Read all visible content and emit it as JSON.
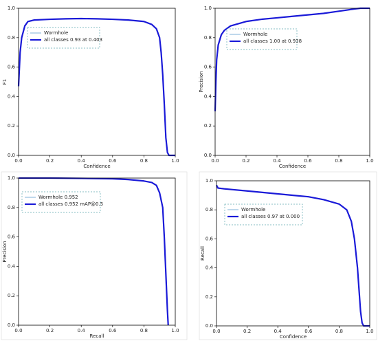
{
  "chart_data": [
    {
      "type": "line",
      "x_label": "Confidence",
      "y_label": "F1",
      "xlim": [
        0,
        1
      ],
      "ylim": [
        0,
        1
      ],
      "xticks": [
        {
          "value": 0,
          "label": "0.0"
        },
        0.2,
        0.4,
        0.6,
        0.8,
        {
          "value": 1,
          "label": "1.0"
        }
      ],
      "yticks": [
        {
          "value": 0,
          "label": "0.0"
        },
        0.2,
        0.4,
        0.6,
        0.8,
        {
          "value": 1,
          "label": "1.0"
        }
      ],
      "x": [
        0,
        0.01,
        0.02,
        0.04,
        0.06,
        0.1,
        0.2,
        0.3,
        0.4,
        0.5,
        0.6,
        0.7,
        0.8,
        0.85,
        0.88,
        0.9,
        0.91,
        0.92,
        0.93,
        0.94,
        0.95,
        0.96,
        1.0
      ],
      "series": [
        {
          "name": "Wormhole",
          "color": "#7fb0d8",
          "values": [
            0.47,
            0.7,
            0.8,
            0.88,
            0.91,
            0.92,
            0.925,
            0.928,
            0.93,
            0.928,
            0.925,
            0.92,
            0.91,
            0.89,
            0.86,
            0.8,
            0.7,
            0.55,
            0.35,
            0.12,
            0.02,
            0,
            0
          ]
        },
        {
          "name": "all classes 0.93 at 0.403",
          "color": "#1a1ad8",
          "values": [
            0.47,
            0.7,
            0.8,
            0.88,
            0.91,
            0.92,
            0.925,
            0.928,
            0.93,
            0.928,
            0.925,
            0.92,
            0.91,
            0.89,
            0.86,
            0.8,
            0.7,
            0.55,
            0.35,
            0.12,
            0.02,
            0,
            0
          ]
        }
      ]
    },
    {
      "type": "line",
      "x_label": "Confidence",
      "y_label": "Precision",
      "xlim": [
        0,
        1
      ],
      "ylim": [
        0,
        1
      ],
      "xticks": [
        {
          "value": 0,
          "label": "0.0"
        },
        0.2,
        0.4,
        0.6,
        0.8,
        {
          "value": 1,
          "label": "1.0"
        }
      ],
      "yticks": [
        {
          "value": 0,
          "label": "0.0"
        },
        0.2,
        0.4,
        0.6,
        0.8,
        {
          "value": 1,
          "label": "1.0"
        }
      ],
      "x": [
        0,
        0.005,
        0.01,
        0.02,
        0.04,
        0.06,
        0.1,
        0.2,
        0.3,
        0.4,
        0.5,
        0.6,
        0.7,
        0.8,
        0.9,
        0.94,
        1.0
      ],
      "series": [
        {
          "name": "Wormhole",
          "color": "#7fb0d8",
          "values": [
            0.3,
            0.5,
            0.65,
            0.75,
            0.82,
            0.85,
            0.88,
            0.91,
            0.925,
            0.935,
            0.945,
            0.955,
            0.965,
            0.98,
            0.995,
            1.0,
            1.0
          ]
        },
        {
          "name": "all classes 1.00 at 0.938",
          "color": "#1a1ad8",
          "values": [
            0.3,
            0.5,
            0.65,
            0.75,
            0.82,
            0.85,
            0.88,
            0.91,
            0.925,
            0.935,
            0.945,
            0.955,
            0.965,
            0.98,
            0.995,
            1.0,
            1.0
          ]
        }
      ]
    },
    {
      "type": "line",
      "x_label": "Recall",
      "y_label": "Precision",
      "xlim": [
        0,
        1
      ],
      "ylim": [
        0,
        1
      ],
      "xticks": [
        {
          "value": 0,
          "label": "0.0"
        },
        0.2,
        0.4,
        0.6,
        0.8,
        {
          "value": 1,
          "label": "1.0"
        }
      ],
      "yticks": [
        {
          "value": 0,
          "label": "0.0"
        },
        0.2,
        0.4,
        0.6,
        0.8,
        {
          "value": 1,
          "label": "1.0"
        }
      ],
      "x": [
        0,
        0.2,
        0.4,
        0.6,
        0.7,
        0.8,
        0.85,
        0.88,
        0.9,
        0.92,
        0.93,
        0.94,
        0.95,
        0.955
      ],
      "series": [
        {
          "name": "Wormhole 0.952",
          "color": "#7fb0d8",
          "values": [
            1.0,
            1.0,
            0.998,
            0.995,
            0.99,
            0.98,
            0.97,
            0.95,
            0.9,
            0.8,
            0.6,
            0.35,
            0.1,
            0
          ]
        },
        {
          "name": "all classes 0.952 mAP@0.5",
          "color": "#1a1ad8",
          "values": [
            1.0,
            1.0,
            0.998,
            0.995,
            0.99,
            0.98,
            0.97,
            0.95,
            0.9,
            0.8,
            0.6,
            0.35,
            0.1,
            0
          ]
        }
      ]
    },
    {
      "type": "line",
      "x_label": "Confidence",
      "y_label": "Recall",
      "xlim": [
        0,
        1
      ],
      "ylim": [
        0,
        1
      ],
      "xticks": [
        {
          "value": 0,
          "label": "0.0"
        },
        0.2,
        0.4,
        0.6,
        0.8,
        {
          "value": 1,
          "label": "1.0"
        }
      ],
      "yticks": [
        {
          "value": 0,
          "label": "0.0"
        },
        0.2,
        0.4,
        0.6,
        0.8,
        {
          "value": 1,
          "label": "1.0"
        }
      ],
      "x": [
        0,
        0.01,
        0.05,
        0.1,
        0.2,
        0.3,
        0.4,
        0.5,
        0.6,
        0.7,
        0.8,
        0.85,
        0.88,
        0.9,
        0.92,
        0.93,
        0.94,
        0.95,
        0.96,
        1.0
      ],
      "series": [
        {
          "name": "Wormhole",
          "color": "#7fb0d8",
          "values": [
            0.97,
            0.95,
            0.945,
            0.94,
            0.93,
            0.92,
            0.91,
            0.9,
            0.89,
            0.87,
            0.84,
            0.8,
            0.72,
            0.6,
            0.4,
            0.25,
            0.1,
            0.02,
            0,
            0
          ]
        },
        {
          "name": "all classes 0.97 at 0.000",
          "color": "#1a1ad8",
          "values": [
            0.97,
            0.95,
            0.945,
            0.94,
            0.93,
            0.92,
            0.91,
            0.9,
            0.89,
            0.87,
            0.84,
            0.8,
            0.72,
            0.6,
            0.4,
            0.25,
            0.1,
            0.02,
            0,
            0
          ]
        }
      ]
    }
  ]
}
